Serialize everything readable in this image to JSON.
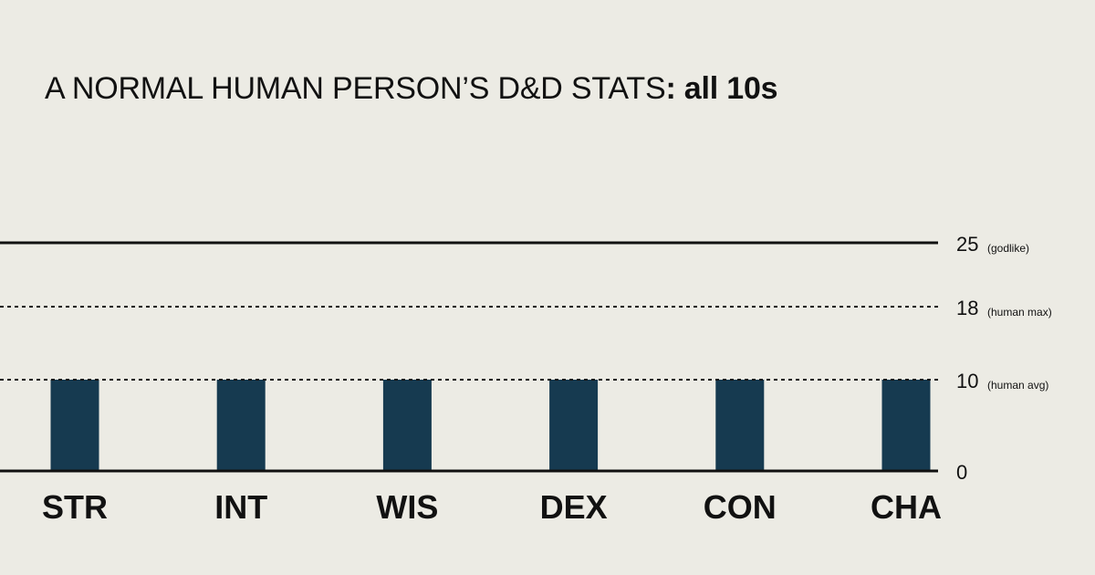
{
  "title": {
    "prefix": "A NORMAL HUMAN PERSON’S D&D STATS",
    "suffix": ": all 10s"
  },
  "chart_data": {
    "type": "bar",
    "categories": [
      "STR",
      "INT",
      "WIS",
      "DEX",
      "CON",
      "CHA"
    ],
    "values": [
      10,
      10,
      10,
      10,
      10,
      10
    ],
    "ylim": [
      0,
      25
    ],
    "y_ticks": [
      {
        "value": 0,
        "label": "0",
        "note": "",
        "style": "solid"
      },
      {
        "value": 10,
        "label": "10",
        "note": "(human avg)",
        "style": "dashed"
      },
      {
        "value": 18,
        "label": "18",
        "note": "(human max)",
        "style": "dashed"
      },
      {
        "value": 25,
        "label": "25",
        "note": "(godlike)",
        "style": "solid"
      }
    ],
    "bar_color": "#163a50",
    "line_color": "#111111",
    "grid": false
  }
}
